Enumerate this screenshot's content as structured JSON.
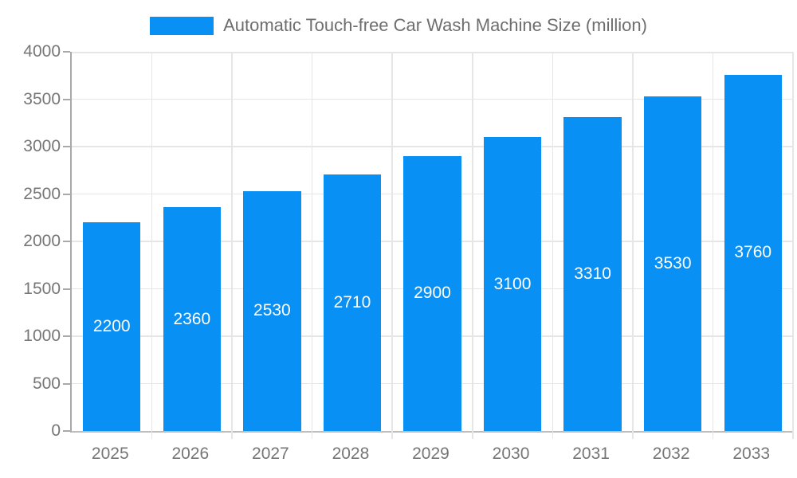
{
  "colors": {
    "bar": "#0990f5",
    "grid": "#e6e6e6",
    "axis": "#a9a9a9",
    "tick_text": "#767676",
    "bar_label_text": "#ffffff",
    "background": "#ffffff"
  },
  "chart_data": {
    "type": "bar",
    "title": "Automatic Touch-free Car Wash Machine Size (million)",
    "categories": [
      "2025",
      "2026",
      "2027",
      "2028",
      "2029",
      "2030",
      "2031",
      "2032",
      "2033"
    ],
    "values": [
      2200,
      2360,
      2530,
      2710,
      2900,
      3100,
      3310,
      3530,
      3760
    ],
    "xlabel": "",
    "ylabel": "",
    "ylim": [
      0,
      4000
    ],
    "yticks": [
      0,
      500,
      1000,
      1500,
      2000,
      2500,
      3000,
      3500,
      4000
    ],
    "grid": true,
    "legend_position": "top",
    "value_labels": "inside-middle"
  }
}
